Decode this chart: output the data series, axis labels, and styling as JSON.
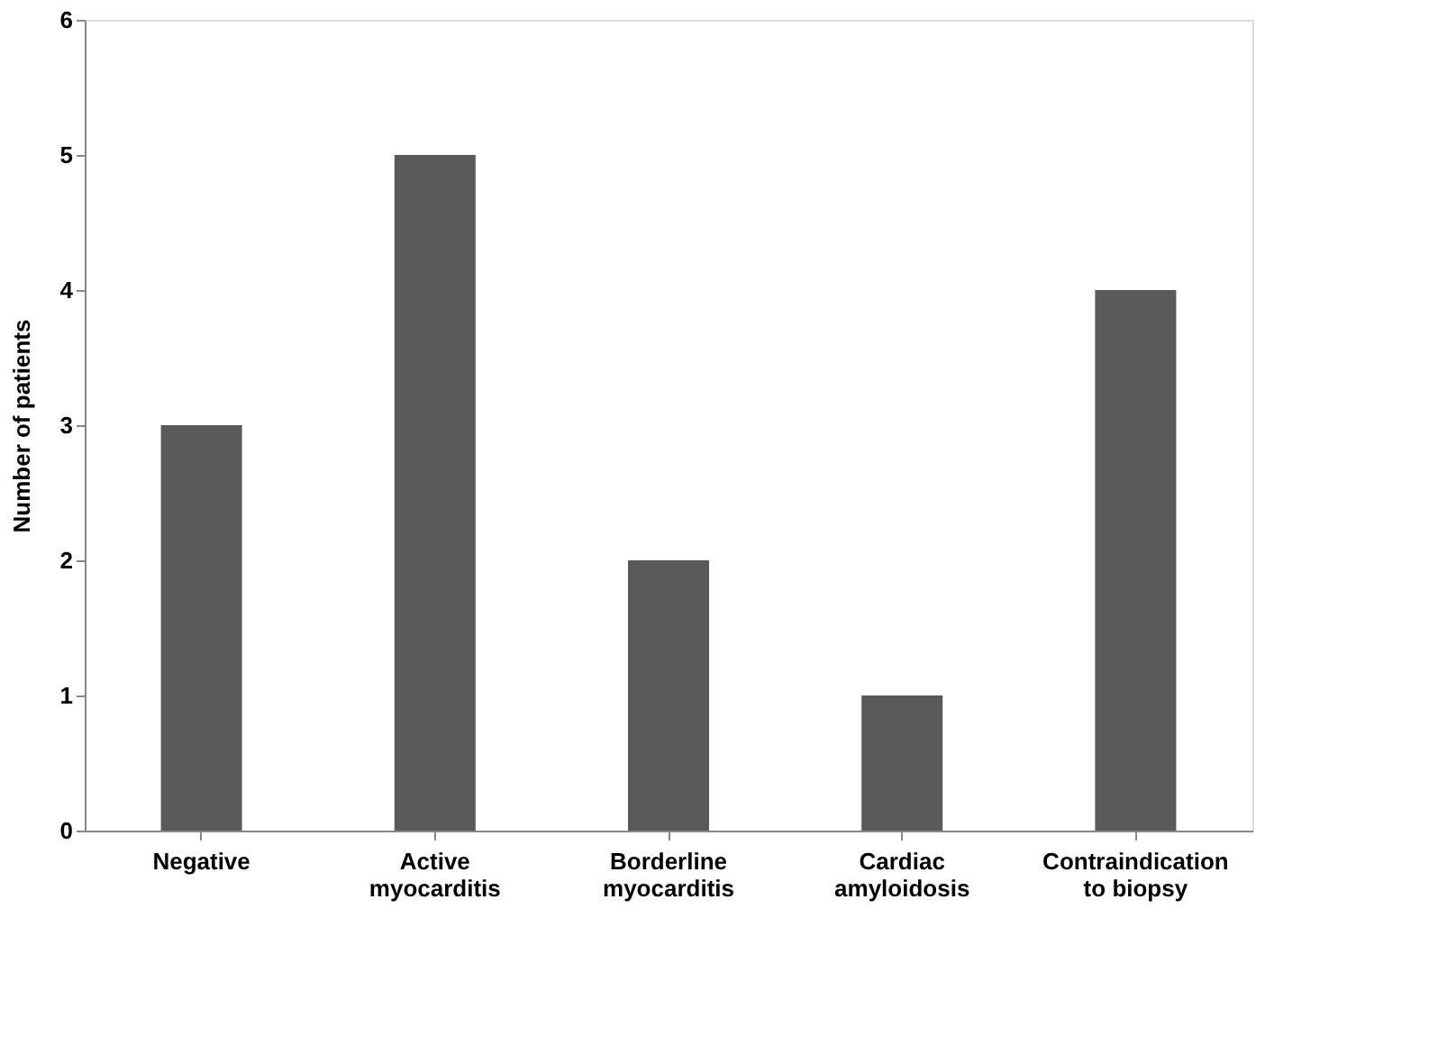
{
  "chart_data": {
    "type": "bar",
    "ylabel": "Number of patients",
    "categories": [
      "Negative",
      "Active myocarditis",
      "Borderline myocarditis",
      "Cardiac amyloidosis",
      "Contraindication to biopsy"
    ],
    "values": [
      3,
      5,
      2,
      1,
      4
    ],
    "color": "#595959",
    "ylim": [
      0,
      6
    ],
    "yticks": [
      0,
      1,
      2,
      3,
      4,
      5,
      6
    ],
    "grid": false
  }
}
